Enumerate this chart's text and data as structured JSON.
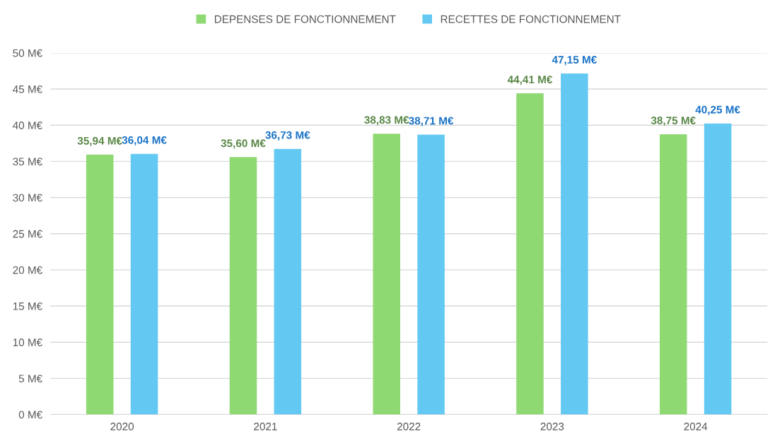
{
  "chart_data": {
    "type": "bar",
    "categories": [
      "2020",
      "2021",
      "2022",
      "2023",
      "2024"
    ],
    "series": [
      {
        "name": "DEPENSES DE FONCTIONNEMENT",
        "color": "#8fd973",
        "values": [
          35.94,
          35.6,
          38.83,
          44.41,
          38.75
        ],
        "value_labels": [
          "35,94 M€",
          "35,60 M€",
          "38,83 M€",
          "44,41 M€",
          "38,75 M€"
        ]
      },
      {
        "name": "RECETTES DE FONCTIONNEMENT",
        "color": "#63c9f2",
        "values": [
          36.04,
          36.73,
          38.71,
          47.15,
          40.25
        ],
        "value_labels": [
          "36,04 M€",
          "36,73 M€",
          "38,71 M€",
          "47,15 M€",
          "40,25 M€"
        ]
      }
    ],
    "ylim": [
      0,
      50
    ],
    "yticks": [
      {
        "value": 0,
        "label": "0 M€"
      },
      {
        "value": 5,
        "label": "5 M€"
      },
      {
        "value": 10,
        "label": "10 M€"
      },
      {
        "value": 15,
        "label": "15 M€"
      },
      {
        "value": 20,
        "label": "20 M€"
      },
      {
        "value": 25,
        "label": "25 M€"
      },
      {
        "value": 30,
        "label": "30 M€"
      },
      {
        "value": 35,
        "label": "35 M€"
      },
      {
        "value": 40,
        "label": "40 M€"
      },
      {
        "value": 45,
        "label": "45 M€"
      },
      {
        "value": 50,
        "label": "50 M€"
      }
    ],
    "grid": "y",
    "legend": "top"
  }
}
